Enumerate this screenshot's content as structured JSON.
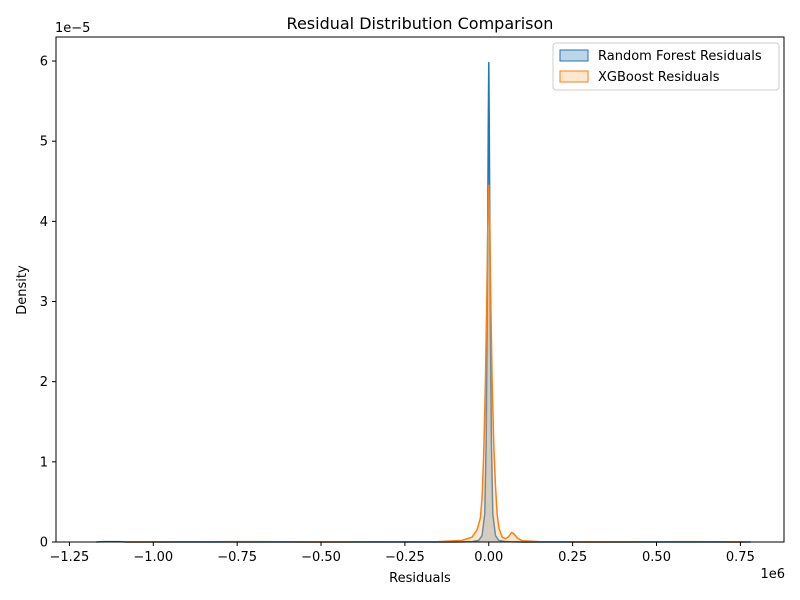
{
  "chart_data": {
    "type": "area",
    "title": "Residual Distribution Comparison",
    "xlabel": "Residuals",
    "ylabel": "Density",
    "x_offset_label": "1e6",
    "y_offset_label": "1e−5",
    "xlim": [
      -1.29,
      0.88
    ],
    "ylim": [
      0,
      6.3
    ],
    "xticks": [
      -1.25,
      -1.0,
      -0.75,
      -0.5,
      -0.25,
      0.0,
      0.25,
      0.5,
      0.75
    ],
    "xtick_labels": [
      "−1.25",
      "−1.00",
      "−0.75",
      "−0.50",
      "−0.25",
      "0.00",
      "0.25",
      "0.50",
      "0.75"
    ],
    "yticks": [
      0,
      1,
      2,
      3,
      4,
      5,
      6
    ],
    "ytick_labels": [
      "0",
      "1",
      "2",
      "3",
      "4",
      "5",
      "6"
    ],
    "grid": false,
    "legend_position": "upper-right",
    "series": [
      {
        "name": "Random Forest Residuals",
        "color": "#1f77b4",
        "fill": "#1f77b4",
        "points": [
          [
            -1.17,
            0.0
          ],
          [
            -1.15,
            0.005
          ],
          [
            -1.1,
            0.005
          ],
          [
            -1.08,
            0.0
          ],
          [
            -0.5,
            0.0
          ],
          [
            -0.1,
            0.0
          ],
          [
            -0.05,
            0.005
          ],
          [
            -0.03,
            0.02
          ],
          [
            -0.02,
            0.08
          ],
          [
            -0.012,
            0.35
          ],
          [
            -0.008,
            1.2
          ],
          [
            -0.005,
            2.6
          ],
          [
            -0.003,
            4.0
          ],
          [
            -0.0015,
            5.2
          ],
          [
            0.0,
            5.98
          ],
          [
            0.0015,
            5.2
          ],
          [
            0.003,
            4.0
          ],
          [
            0.005,
            2.6
          ],
          [
            0.008,
            1.2
          ],
          [
            0.012,
            0.35
          ],
          [
            0.02,
            0.08
          ],
          [
            0.03,
            0.02
          ],
          [
            0.05,
            0.005
          ],
          [
            0.1,
            0.0
          ],
          [
            0.5,
            0.0
          ],
          [
            0.78,
            0.0
          ]
        ]
      },
      {
        "name": "XGBoost Residuals",
        "color": "#ff7f0e",
        "fill": "#ffbb78",
        "points": [
          [
            -1.08,
            0.0
          ],
          [
            -0.75,
            0.005
          ],
          [
            -0.5,
            0.0
          ],
          [
            -0.15,
            0.005
          ],
          [
            -0.08,
            0.02
          ],
          [
            -0.05,
            0.06
          ],
          [
            -0.035,
            0.15
          ],
          [
            -0.025,
            0.3
          ],
          [
            -0.02,
            0.55
          ],
          [
            -0.015,
            1.1
          ],
          [
            -0.01,
            2.0
          ],
          [
            -0.006,
            3.0
          ],
          [
            -0.003,
            3.9
          ],
          [
            0.0,
            4.45
          ],
          [
            0.003,
            3.9
          ],
          [
            0.006,
            3.0
          ],
          [
            0.01,
            2.0
          ],
          [
            0.015,
            1.2
          ],
          [
            0.02,
            0.7
          ],
          [
            0.025,
            0.35
          ],
          [
            0.03,
            0.18
          ],
          [
            0.04,
            0.06
          ],
          [
            0.05,
            0.04
          ],
          [
            0.06,
            0.07
          ],
          [
            0.068,
            0.12
          ],
          [
            0.075,
            0.1
          ],
          [
            0.085,
            0.05
          ],
          [
            0.1,
            0.015
          ],
          [
            0.15,
            0.005
          ],
          [
            0.3,
            0.0
          ],
          [
            0.6,
            0.005
          ],
          [
            0.76,
            0.0
          ]
        ]
      }
    ]
  }
}
